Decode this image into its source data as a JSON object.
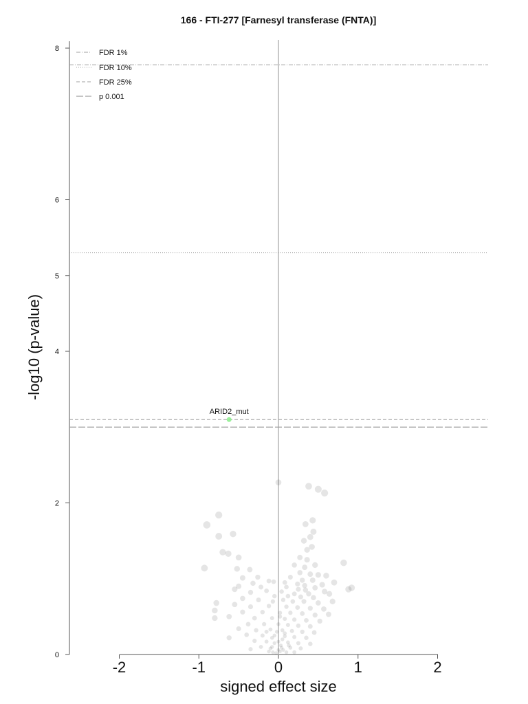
{
  "chart_data": {
    "type": "scatter",
    "title": "166 - FTI-277 [Farnesyl transferase (FNTA)]",
    "xlabel": "signed effect size",
    "ylabel": "-log10 (p-value)",
    "x_ticks": [
      "-2",
      "-1",
      "0",
      "1",
      "2"
    ],
    "y_ticks": [
      "0",
      "2",
      "4",
      "5",
      "6",
      "8"
    ],
    "xlim": [
      -2.0,
      2.0
    ],
    "ylim": [
      0,
      8
    ],
    "thresholds": [
      {
        "name": "FDR 1%",
        "y": 7.78,
        "style": "dashdot",
        "color": "#a0a0a0"
      },
      {
        "name": "FDR 10%",
        "y": 5.3,
        "style": "dotted",
        "color": "#a0a0a0"
      },
      {
        "name": "FDR 25%",
        "y": 3.1,
        "style": "dashed",
        "color": "#a0a0a0"
      },
      {
        "name": "p 0.001",
        "y": 3.0,
        "style": "longdash",
        "color": "#a0a0a0"
      }
    ],
    "legend": {
      "position": "top-left",
      "entries": [
        "FDR 1%",
        "FDR 10%",
        "FDR 25%",
        "p 0.001"
      ]
    },
    "highlight": {
      "label": "ARID2_mut",
      "x": -0.62,
      "y": 3.1,
      "color": "#90ee90"
    },
    "points": [
      {
        "x": 0.0,
        "y": 2.27
      },
      {
        "x": 0.38,
        "y": 2.22
      },
      {
        "x": 0.5,
        "y": 2.18
      },
      {
        "x": 0.58,
        "y": 2.13
      },
      {
        "x": -0.75,
        "y": 1.84
      },
      {
        "x": -0.9,
        "y": 1.71
      },
      {
        "x": 0.43,
        "y": 1.77
      },
      {
        "x": 0.34,
        "y": 1.72
      },
      {
        "x": -0.57,
        "y": 1.59
      },
      {
        "x": -0.75,
        "y": 1.56
      },
      {
        "x": 0.44,
        "y": 1.62
      },
      {
        "x": 0.4,
        "y": 1.55
      },
      {
        "x": 0.32,
        "y": 1.5
      },
      {
        "x": 0.36,
        "y": 1.38
      },
      {
        "x": 0.42,
        "y": 1.42
      },
      {
        "x": -0.7,
        "y": 1.35
      },
      {
        "x": -0.63,
        "y": 1.33
      },
      {
        "x": 0.27,
        "y": 1.28
      },
      {
        "x": 0.36,
        "y": 1.25
      },
      {
        "x": -0.5,
        "y": 1.28
      },
      {
        "x": 0.2,
        "y": 1.18
      },
      {
        "x": 0.33,
        "y": 1.15
      },
      {
        "x": 0.46,
        "y": 1.18
      },
      {
        "x": 0.82,
        "y": 1.21
      },
      {
        "x": -0.93,
        "y": 1.14
      },
      {
        "x": -0.52,
        "y": 1.13
      },
      {
        "x": -0.36,
        "y": 1.12
      },
      {
        "x": 0.27,
        "y": 1.08
      },
      {
        "x": 0.4,
        "y": 1.06
      },
      {
        "x": 0.5,
        "y": 1.05
      },
      {
        "x": 0.6,
        "y": 1.04
      },
      {
        "x": -0.45,
        "y": 1.01
      },
      {
        "x": -0.26,
        "y": 1.02
      },
      {
        "x": 0.15,
        "y": 1.02
      },
      {
        "x": 0.3,
        "y": 0.98
      },
      {
        "x": 0.43,
        "y": 0.98
      },
      {
        "x": -0.12,
        "y": 0.97
      },
      {
        "x": 0.08,
        "y": 0.95
      },
      {
        "x": 0.24,
        "y": 0.93
      },
      {
        "x": 0.33,
        "y": 0.91
      },
      {
        "x": -0.32,
        "y": 0.94
      },
      {
        "x": -0.06,
        "y": 0.96
      },
      {
        "x": 0.7,
        "y": 0.95
      },
      {
        "x": 0.55,
        "y": 0.92
      },
      {
        "x": -0.5,
        "y": 0.9
      },
      {
        "x": -0.22,
        "y": 0.89
      },
      {
        "x": 0.1,
        "y": 0.89
      },
      {
        "x": 0.46,
        "y": 0.88
      },
      {
        "x": 0.25,
        "y": 0.86
      },
      {
        "x": 0.34,
        "y": 0.85
      },
      {
        "x": 0.92,
        "y": 0.88
      },
      {
        "x": 0.88,
        "y": 0.86
      },
      {
        "x": -0.55,
        "y": 0.86
      },
      {
        "x": -0.15,
        "y": 0.84
      },
      {
        "x": 0.04,
        "y": 0.83
      },
      {
        "x": 0.2,
        "y": 0.8
      },
      {
        "x": 0.38,
        "y": 0.8
      },
      {
        "x": 0.58,
        "y": 0.83
      },
      {
        "x": 0.64,
        "y": 0.8
      },
      {
        "x": -0.35,
        "y": 0.82
      },
      {
        "x": -0.05,
        "y": 0.77
      },
      {
        "x": 0.12,
        "y": 0.77
      },
      {
        "x": 0.28,
        "y": 0.76
      },
      {
        "x": 0.44,
        "y": 0.75
      },
      {
        "x": -0.45,
        "y": 0.74
      },
      {
        "x": -0.25,
        "y": 0.72
      },
      {
        "x": 0.06,
        "y": 0.72
      },
      {
        "x": 0.18,
        "y": 0.7
      },
      {
        "x": 0.32,
        "y": 0.7
      },
      {
        "x": 0.5,
        "y": 0.68
      },
      {
        "x": 0.68,
        "y": 0.7
      },
      {
        "x": -0.55,
        "y": 0.66
      },
      {
        "x": -0.35,
        "y": 0.63
      },
      {
        "x": -0.12,
        "y": 0.64
      },
      {
        "x": 0.1,
        "y": 0.63
      },
      {
        "x": 0.24,
        "y": 0.62
      },
      {
        "x": 0.4,
        "y": 0.61
      },
      {
        "x": 0.57,
        "y": 0.6
      },
      {
        "x": -0.78,
        "y": 0.68
      },
      {
        "x": -0.45,
        "y": 0.56
      },
      {
        "x": -0.2,
        "y": 0.56
      },
      {
        "x": 0.02,
        "y": 0.55
      },
      {
        "x": 0.15,
        "y": 0.55
      },
      {
        "x": 0.3,
        "y": 0.54
      },
      {
        "x": 0.46,
        "y": 0.52
      },
      {
        "x": 0.63,
        "y": 0.53
      },
      {
        "x": -0.8,
        "y": 0.58
      },
      {
        "x": -0.62,
        "y": 0.5
      },
      {
        "x": -0.3,
        "y": 0.48
      },
      {
        "x": -0.08,
        "y": 0.48
      },
      {
        "x": 0.08,
        "y": 0.47
      },
      {
        "x": 0.2,
        "y": 0.46
      },
      {
        "x": 0.35,
        "y": 0.45
      },
      {
        "x": 0.52,
        "y": 0.44
      },
      {
        "x": -0.38,
        "y": 0.4
      },
      {
        "x": -0.18,
        "y": 0.4
      },
      {
        "x": 0.0,
        "y": 0.4
      },
      {
        "x": 0.12,
        "y": 0.39
      },
      {
        "x": 0.25,
        "y": 0.38
      },
      {
        "x": 0.4,
        "y": 0.37
      },
      {
        "x": -0.8,
        "y": 0.48
      },
      {
        "x": -0.5,
        "y": 0.34
      },
      {
        "x": -0.28,
        "y": 0.32
      },
      {
        "x": -0.1,
        "y": 0.33
      },
      {
        "x": 0.05,
        "y": 0.32
      },
      {
        "x": 0.17,
        "y": 0.31
      },
      {
        "x": 0.3,
        "y": 0.3
      },
      {
        "x": 0.45,
        "y": 0.29
      },
      {
        "x": -0.4,
        "y": 0.26
      },
      {
        "x": -0.2,
        "y": 0.25
      },
      {
        "x": -0.05,
        "y": 0.25
      },
      {
        "x": 0.08,
        "y": 0.24
      },
      {
        "x": 0.2,
        "y": 0.23
      },
      {
        "x": 0.35,
        "y": 0.22
      },
      {
        "x": -0.62,
        "y": 0.22
      },
      {
        "x": -0.3,
        "y": 0.18
      },
      {
        "x": -0.15,
        "y": 0.17
      },
      {
        "x": 0.0,
        "y": 0.17
      },
      {
        "x": 0.12,
        "y": 0.16
      },
      {
        "x": 0.25,
        "y": 0.15
      },
      {
        "x": 0.4,
        "y": 0.14
      },
      {
        "x": -0.22,
        "y": 0.1
      },
      {
        "x": -0.08,
        "y": 0.1
      },
      {
        "x": 0.04,
        "y": 0.09
      },
      {
        "x": 0.15,
        "y": 0.09
      },
      {
        "x": 0.28,
        "y": 0.08
      },
      {
        "x": -0.35,
        "y": 0.07
      },
      {
        "x": -0.12,
        "y": 0.04
      },
      {
        "x": 0.02,
        "y": 0.04
      },
      {
        "x": 0.1,
        "y": 0.03
      },
      {
        "x": 0.2,
        "y": 0.03
      },
      {
        "x": -0.05,
        "y": 0.15
      },
      {
        "x": 0.05,
        "y": 0.2
      },
      {
        "x": -0.02,
        "y": 0.3
      },
      {
        "x": 0.03,
        "y": 0.12
      },
      {
        "x": -0.08,
        "y": 0.22
      },
      {
        "x": 0.08,
        "y": 0.28
      },
      {
        "x": -0.15,
        "y": 0.3
      },
      {
        "x": 0.0,
        "y": 0.06
      },
      {
        "x": -0.1,
        "y": 0.08
      },
      {
        "x": 0.06,
        "y": 0.06
      },
      {
        "x": -0.03,
        "y": 0.02
      },
      {
        "x": 0.13,
        "y": 0.12
      },
      {
        "x": -0.07,
        "y": 0.7
      },
      {
        "x": -0.07,
        "y": 0.03
      },
      {
        "x": 0.02,
        "y": 0.5
      }
    ]
  }
}
